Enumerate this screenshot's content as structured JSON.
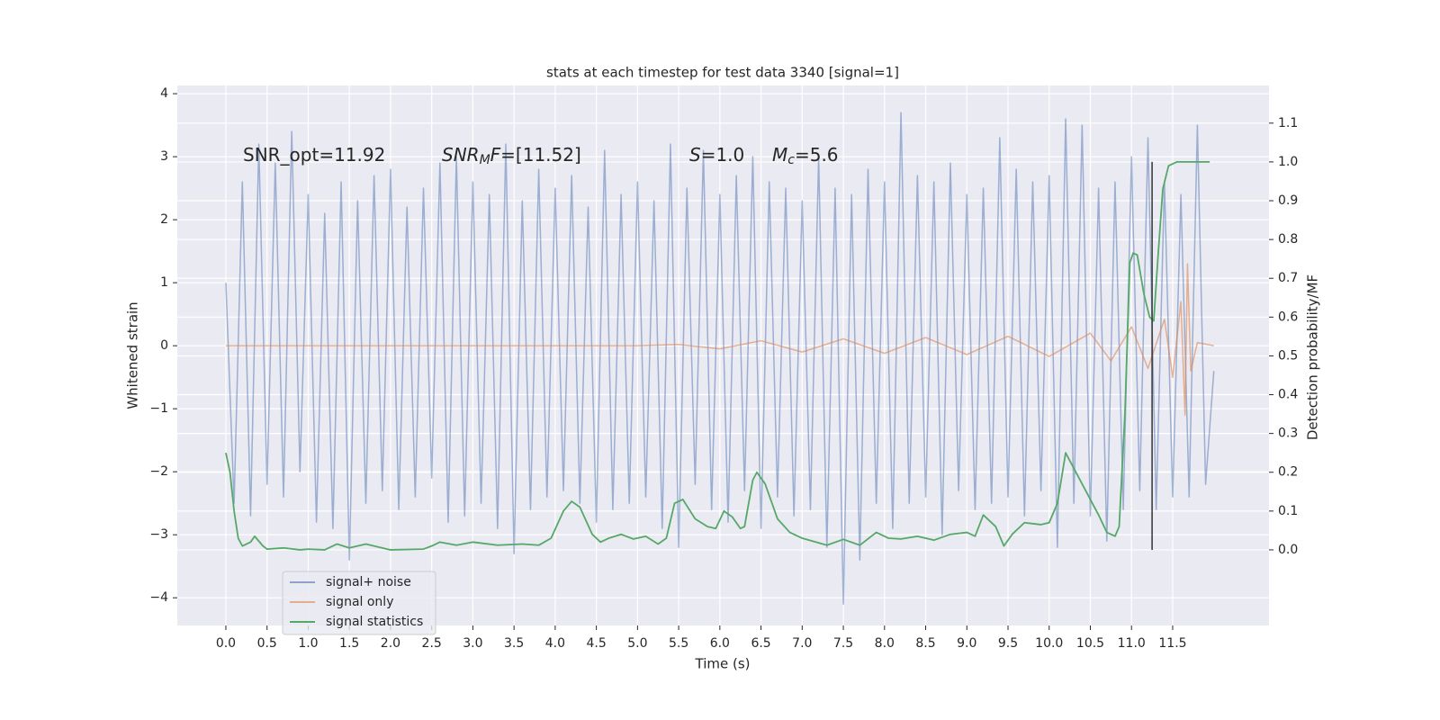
{
  "chart_data": {
    "type": "line",
    "title": "stats at each timestep for test data 3340 [signal=1]",
    "xlabel": "Time (s)",
    "ylabel": "Whitened strain",
    "y2label": "Detection probability/MF",
    "xlim": [
      -0.59,
      12.67
    ],
    "ylim": [
      -4.44,
      4.13
    ],
    "y2lim": [
      -0.195,
      1.197
    ],
    "xticks": [
      {
        "value": 0,
        "label": "0.0"
      },
      0.5,
      {
        "value": 1,
        "label": "1.0"
      },
      1.5,
      {
        "value": 2,
        "label": "2.0"
      },
      2.5,
      {
        "value": 3,
        "label": "3.0"
      },
      3.5,
      {
        "value": 4,
        "label": "4.0"
      },
      4.5,
      {
        "value": 5,
        "label": "5.0"
      },
      5.5,
      {
        "value": 6,
        "label": "6.0"
      },
      6.5,
      {
        "value": 7,
        "label": "7.0"
      },
      7.5,
      {
        "value": 8,
        "label": "8.0"
      },
      8.5,
      {
        "value": 9,
        "label": "9.0"
      },
      9.5,
      {
        "value": 10,
        "label": "10.0"
      },
      10.5,
      {
        "value": 11,
        "label": "11.0"
      },
      11.5
    ],
    "yticks": [
      {
        "value": -4,
        "label": "−4"
      },
      {
        "value": -3,
        "label": "−3"
      },
      {
        "value": -2,
        "label": "−2"
      },
      {
        "value": -1,
        "label": "−1"
      },
      0,
      1,
      2,
      3,
      4
    ],
    "y2ticks": [
      {
        "value": 0,
        "label": "0.0"
      },
      0.1,
      0.2,
      0.3,
      0.4,
      0.5,
      0.6,
      0.7,
      0.8,
      0.9,
      {
        "value": 1,
        "label": "1.0"
      },
      1.1
    ],
    "grid": true,
    "legend": "lower left",
    "series": [
      {
        "name": "signal+ noise",
        "color": "#4c72b0",
        "x": [
          0,
          0.1,
          0.2,
          0.3,
          0.4,
          0.5,
          0.6,
          0.7,
          0.8,
          0.9,
          1,
          1.1,
          1.2,
          1.3,
          1.4,
          1.5,
          1.6,
          1.7,
          1.8,
          1.9,
          2,
          2.1,
          2.2,
          2.3,
          2.4,
          2.5,
          2.6,
          2.7,
          2.8,
          2.9,
          3,
          3.1,
          3.2,
          3.3,
          3.4,
          3.5,
          3.6,
          3.7,
          3.8,
          3.9,
          4,
          4.1,
          4.2,
          4.3,
          4.4,
          4.5,
          4.6,
          4.7,
          4.8,
          4.9,
          5,
          5.1,
          5.2,
          5.3,
          5.4,
          5.5,
          5.6,
          5.7,
          5.8,
          5.9,
          6,
          6.1,
          6.2,
          6.3,
          6.4,
          6.5,
          6.6,
          6.7,
          6.8,
          6.9,
          7,
          7.1,
          7.2,
          7.3,
          7.4,
          7.5,
          7.6,
          7.7,
          7.8,
          7.9,
          8,
          8.1,
          8.2,
          8.3,
          8.4,
          8.5,
          8.6,
          8.7,
          8.8,
          8.9,
          9,
          9.1,
          9.2,
          9.3,
          9.4,
          9.5,
          9.6,
          9.7,
          9.8,
          9.9,
          10,
          10.1,
          10.2,
          10.3,
          10.4,
          10.5,
          10.6,
          10.7,
          10.8,
          10.9,
          11,
          11.1,
          11.2,
          11.3,
          11.4,
          11.5,
          11.6,
          11.7,
          11.8,
          11.9,
          12
        ],
        "values": [
          1.0,
          -2.5,
          2.6,
          -2.7,
          3.2,
          -2.2,
          2.9,
          -2.4,
          3.4,
          -2.0,
          2.4,
          -2.8,
          2.1,
          -2.9,
          2.6,
          -3.4,
          2.3,
          -2.5,
          2.7,
          -2.3,
          2.8,
          -2.6,
          2.2,
          -2.4,
          2.5,
          -2.1,
          2.9,
          -2.8,
          3.0,
          -2.7,
          2.6,
          -2.5,
          2.4,
          -2.9,
          3.2,
          -3.3,
          2.3,
          -2.6,
          2.8,
          -2.4,
          2.5,
          -2.3,
          2.7,
          -2.5,
          2.2,
          -2.8,
          3.1,
          -2.6,
          2.4,
          -2.5,
          2.6,
          -2.4,
          2.3,
          -2.9,
          3.2,
          -3.2,
          2.5,
          -2.2,
          3.1,
          -2.6,
          2.4,
          -2.8,
          2.7,
          -2.3,
          3.0,
          -2.9,
          2.6,
          -2.4,
          2.5,
          -2.7,
          2.3,
          -2.6,
          3.0,
          -3.2,
          2.5,
          -4.1,
          2.4,
          -3.4,
          2.8,
          -2.5,
          2.6,
          -2.9,
          3.7,
          -2.5,
          2.7,
          -2.4,
          2.6,
          -3.0,
          2.9,
          -2.3,
          2.4,
          -2.6,
          2.5,
          -2.5,
          3.3,
          -2.4,
          2.8,
          -2.7,
          2.6,
          -2.3,
          2.7,
          -3.2,
          3.6,
          -2.5,
          3.5,
          -2.7,
          2.5,
          -3.1,
          2.6,
          -2.6,
          3.0,
          -2.3,
          3.3,
          -2.6,
          2.6,
          -2.4,
          2.4,
          -2.4,
          3.5,
          -2.2,
          -0.4
        ]
      },
      {
        "name": "signal only",
        "color": "#dd8452",
        "x": [
          0,
          1,
          2,
          3,
          4,
          5,
          5.5,
          6,
          6.5,
          7,
          7.5,
          8,
          8.5,
          9,
          9.5,
          10,
          10.5,
          10.75,
          11,
          11.2,
          11.4,
          11.5,
          11.6,
          11.65,
          11.68,
          11.72,
          11.8,
          12
        ],
        "values": [
          0,
          0,
          0,
          0,
          0,
          0,
          0.02,
          -0.05,
          0.08,
          -0.1,
          0.11,
          -0.12,
          0.13,
          -0.14,
          0.15,
          -0.17,
          0.2,
          -0.24,
          0.3,
          -0.36,
          0.42,
          -0.5,
          0.7,
          -1.1,
          1.3,
          -0.4,
          0.05,
          0
        ]
      },
      {
        "name": "signal statistics",
        "color": "#55a868",
        "axis": "y2",
        "x": [
          0,
          0.05,
          0.1,
          0.15,
          0.2,
          0.3,
          0.35,
          0.45,
          0.5,
          0.7,
          0.9,
          1.0,
          1.2,
          1.35,
          1.5,
          1.7,
          2.0,
          2.4,
          2.5,
          2.6,
          2.8,
          3.0,
          3.3,
          3.6,
          3.8,
          3.95,
          4.1,
          4.2,
          4.3,
          4.45,
          4.55,
          4.65,
          4.8,
          4.95,
          5.1,
          5.25,
          5.35,
          5.45,
          5.55,
          5.7,
          5.85,
          5.95,
          6.05,
          6.15,
          6.25,
          6.3,
          6.4,
          6.45,
          6.55,
          6.7,
          6.85,
          7.0,
          7.3,
          7.5,
          7.7,
          7.9,
          8.05,
          8.2,
          8.4,
          8.6,
          8.8,
          9.0,
          9.1,
          9.2,
          9.35,
          9.45,
          9.55,
          9.7,
          9.9,
          10.0,
          10.1,
          10.2,
          10.3,
          10.45,
          10.6,
          10.7,
          10.8,
          10.85,
          10.92,
          10.98,
          11.02,
          11.07,
          11.15,
          11.22,
          11.27,
          11.32,
          11.38,
          11.45,
          11.55,
          11.95
        ],
        "values": [
          0.25,
          0.2,
          0.1,
          0.03,
          0.01,
          0.02,
          0.035,
          0.01,
          0.002,
          0.005,
          0,
          0.002,
          0,
          0.015,
          0.005,
          0.015,
          0,
          0.002,
          0.01,
          0.02,
          0.012,
          0.02,
          0.012,
          0.015,
          0.012,
          0.03,
          0.1,
          0.125,
          0.11,
          0.04,
          0.02,
          0.03,
          0.04,
          0.028,
          0.035,
          0.015,
          0.03,
          0.12,
          0.13,
          0.08,
          0.06,
          0.055,
          0.1,
          0.085,
          0.055,
          0.06,
          0.18,
          0.2,
          0.17,
          0.08,
          0.045,
          0.03,
          0.012,
          0.027,
          0.012,
          0.045,
          0.03,
          0.028,
          0.035,
          0.025,
          0.04,
          0.045,
          0.035,
          0.09,
          0.06,
          0.01,
          0.04,
          0.07,
          0.065,
          0.07,
          0.12,
          0.25,
          0.21,
          0.15,
          0.09,
          0.045,
          0.035,
          0.06,
          0.35,
          0.74,
          0.765,
          0.76,
          0.66,
          0.6,
          0.59,
          0.75,
          0.93,
          0.99,
          1.0,
          1.0
        ]
      }
    ],
    "vline": {
      "x": 11.25,
      "y2": [
        0,
        1
      ],
      "color": "#333333"
    },
    "annotations": [
      [
        {
          "text": "SNR_opt=11.92"
        }
      ],
      [
        {
          "text": "SNR",
          "style": "italic"
        },
        {
          "text": "M",
          "style": "italic-sub"
        },
        {
          "text": "F",
          "style": "italic"
        },
        {
          "text": "=[11.52]"
        }
      ],
      [
        {
          "text": "S",
          "style": "italic"
        },
        {
          "text": "=1.0"
        }
      ],
      [
        {
          "text": "M",
          "style": "italic"
        },
        {
          "text": "c",
          "style": "italic-sub"
        },
        {
          "text": "=5.6"
        }
      ]
    ]
  }
}
